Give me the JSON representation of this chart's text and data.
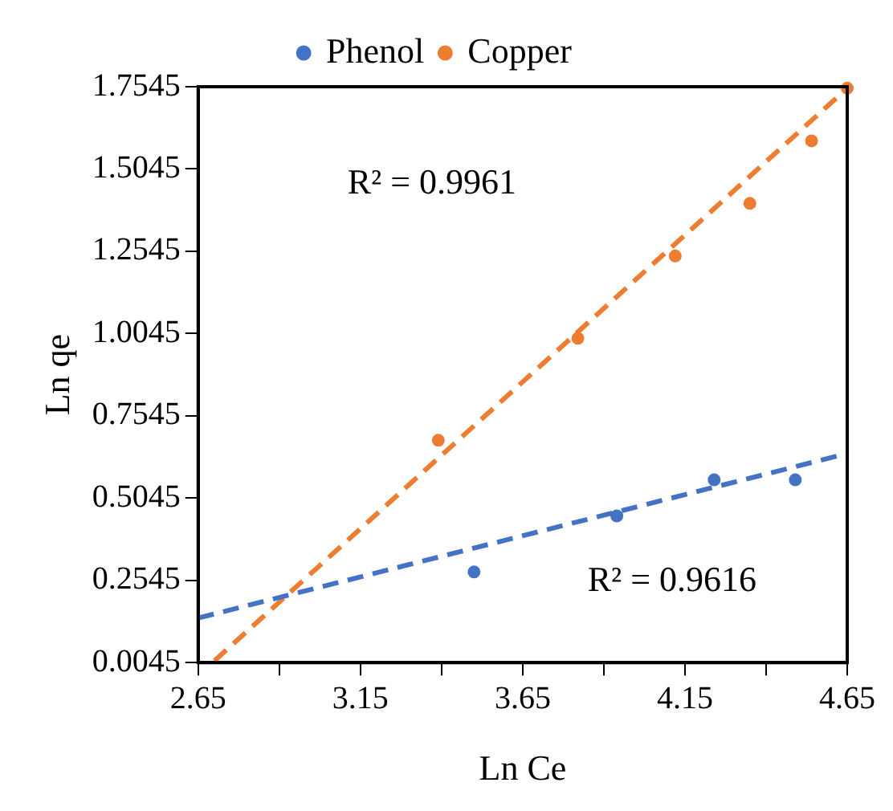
{
  "chart_data": {
    "type": "scatter",
    "xlabel": "Ln Ce",
    "ylabel": "Ln qe",
    "xlim": [
      2.65,
      4.65
    ],
    "ylim": [
      0.0045,
      1.7545
    ],
    "xticks": [
      2.65,
      {
        "value": 2.9,
        "label": null
      },
      3.15,
      {
        "value": 3.4,
        "label": null
      },
      3.65,
      {
        "value": 3.9,
        "label": null
      },
      4.15,
      {
        "value": 4.4,
        "label": null
      },
      4.65
    ],
    "yticks": [
      0.0045,
      0.2545,
      0.5045,
      0.7545,
      1.0045,
      1.2545,
      1.5045,
      1.7545
    ],
    "grid": false,
    "legend": "top",
    "marker": "circle",
    "series": [
      {
        "name": "Phenol",
        "color": "#4472c4",
        "x": [
          3.5,
          3.94,
          4.24,
          4.49
        ],
        "values": [
          0.28,
          0.45,
          0.56,
          0.56
        ]
      },
      {
        "name": "Copper",
        "color": "#ed7d31",
        "x": [
          3.39,
          3.82,
          4.12,
          4.35,
          4.54,
          4.65
        ],
        "values": [
          0.68,
          0.99,
          1.24,
          1.4,
          1.59,
          1.75
        ]
      },
      {
        "type": "line",
        "color": "#4472c4",
        "x": [
          2.65,
          4.65
        ],
        "values": [
          0.14,
          0.64
        ],
        "line_style": "dashed",
        "marker": "none"
      },
      {
        "type": "line",
        "color": "#ed7d31",
        "x": [
          2.7,
          4.65
        ],
        "values": [
          0.01,
          1.75
        ],
        "line_style": "dashed",
        "marker": "none"
      }
    ],
    "annotations": [
      "R² = 0.9961",
      "R² = 0.9616"
    ]
  }
}
